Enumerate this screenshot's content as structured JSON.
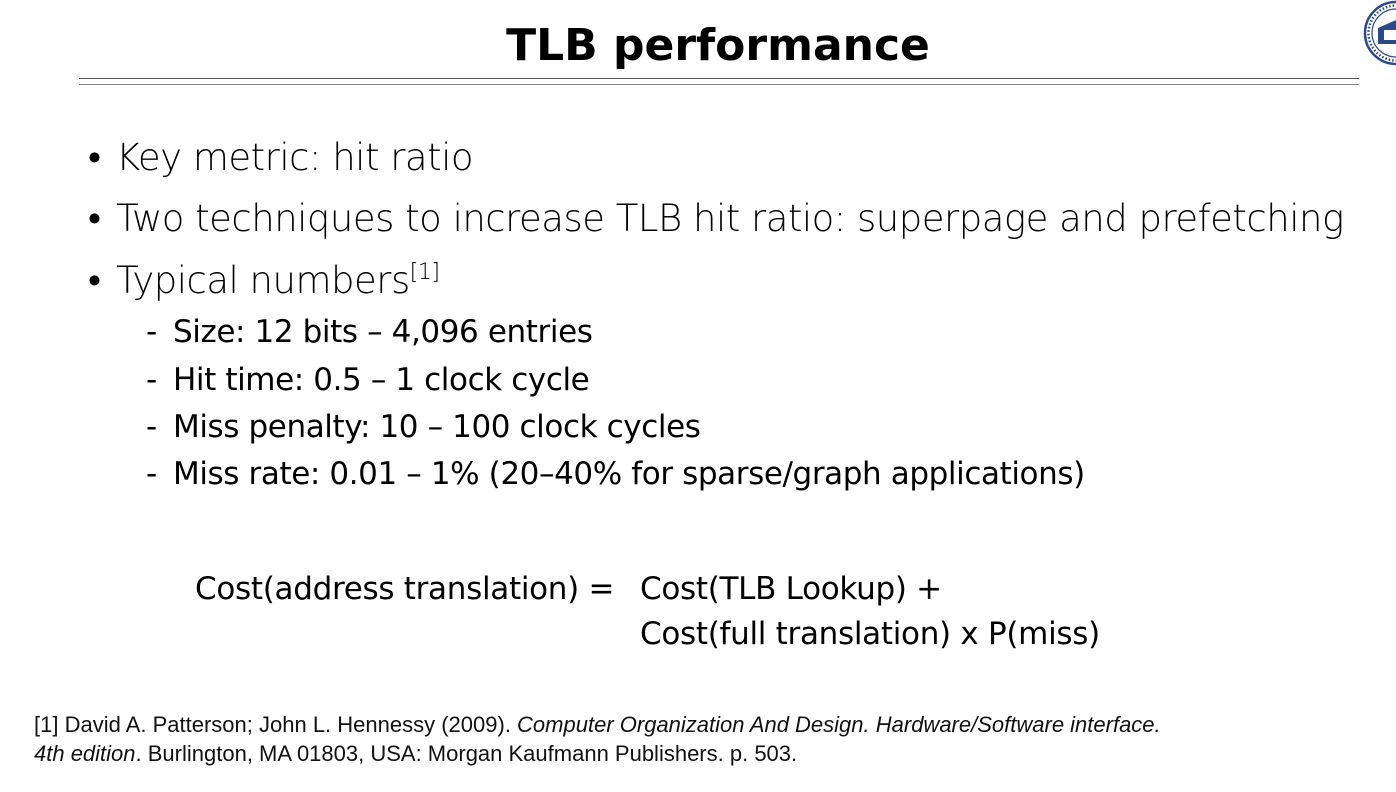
{
  "slide": {
    "title": "TLB performance"
  },
  "bullets": [
    "Key metric: hit ratio",
    "Two techniques to increase TLB hit ratio: superpage and prefetching",
    "Typical numbers"
  ],
  "bullet_marker": "•",
  "citation_marker": "[1]",
  "sub_marker": "-",
  "sub_bullets": [
    "Size: 12 bits – 4,096 entries",
    "Hit time: 0.5 – 1 clock cycle",
    "Miss penalty: 10 – 100 clock cycles",
    "Miss rate: 0.01 – 1% (20–40% for sparse/graph applications)"
  ],
  "formula": {
    "lhs": "Cost(address translation) =",
    "rhs_line1": "Cost(TLB Lookup) +",
    "rhs_line2": "Cost(full translation) x P(miss)"
  },
  "reference": {
    "prefix": "[1] David A. Patterson; John L. Hennessy (2009). ",
    "title_italic": "Computer Organization And Design. Hardware/Software interface.",
    "edition_italic": "4th edition",
    "suffix": ". Burlington, MA 01803, USA: Morgan Kaufmann Publishers. p. 503."
  },
  "logo": {
    "icon": "university-seal-icon",
    "color": "#2b4a8a"
  }
}
